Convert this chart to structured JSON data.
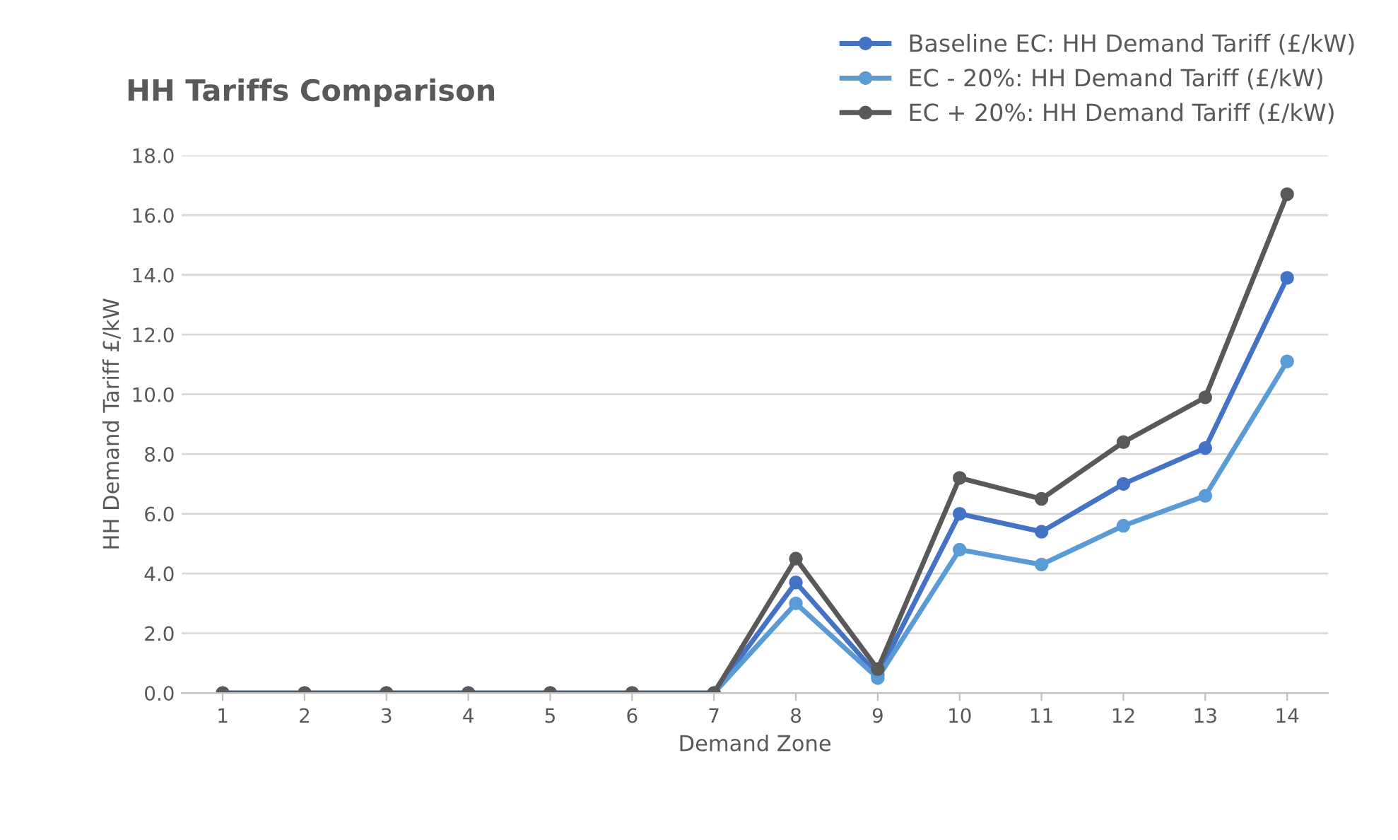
{
  "chart_data": {
    "type": "line",
    "title": "HH Tariffs Comparison",
    "xlabel": "Demand Zone",
    "ylabel": "HH Demand Tariff £/kW",
    "categories": [
      "1",
      "2",
      "3",
      "4",
      "5",
      "6",
      "7",
      "8",
      "9",
      "10",
      "11",
      "12",
      "13",
      "14"
    ],
    "series": [
      {
        "name": "Baseline EC: HH Demand Tariff (£/kW)",
        "color": "#4472c4",
        "values": [
          0,
          0,
          0,
          0,
          0,
          0,
          0,
          3.7,
          0.6,
          6.0,
          5.4,
          7.0,
          8.2,
          13.9
        ]
      },
      {
        "name": "EC - 20%: HH Demand Tariff (£/kW)",
        "color": "#5b9bd5",
        "values": [
          0,
          0,
          0,
          0,
          0,
          0,
          0,
          3.0,
          0.5,
          4.8,
          4.3,
          5.6,
          6.6,
          11.1
        ]
      },
      {
        "name": "EC + 20%: HH Demand Tariff (£/kW)",
        "color": "#595959",
        "values": [
          0,
          0,
          0,
          0,
          0,
          0,
          0,
          4.5,
          0.8,
          7.2,
          6.5,
          8.4,
          9.9,
          16.7
        ]
      }
    ],
    "ylim": [
      0,
      18
    ],
    "yticks": [
      {
        "value": 0,
        "label": "0.0"
      },
      {
        "value": 2,
        "label": "2.0"
      },
      {
        "value": 4,
        "label": "4.0"
      },
      {
        "value": 6,
        "label": "6.0"
      },
      {
        "value": 8,
        "label": "8.0"
      },
      {
        "value": 10,
        "label": "10.0"
      },
      {
        "value": 12,
        "label": "12.0"
      },
      {
        "value": 14,
        "label": "14.0"
      },
      {
        "value": 16,
        "label": "16.0"
      },
      {
        "value": 18,
        "label": "18.0"
      }
    ],
    "grid": "y",
    "legend": "top right",
    "marker": "circle",
    "line_style": "solid"
  }
}
